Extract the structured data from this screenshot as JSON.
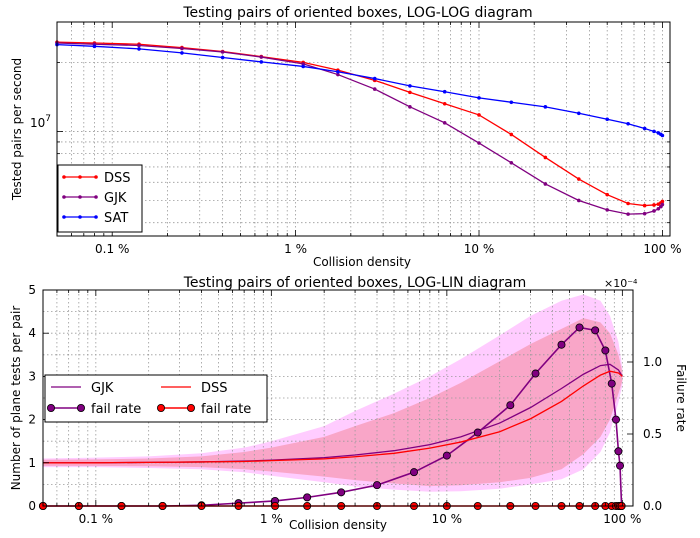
{
  "chart_data": [
    {
      "type": "line",
      "title": "Testing pairs of oriented boxes, LOG-LOG diagram",
      "xlabel": "Collision density",
      "ylabel": "Tested pairs per second",
      "xscale": "log",
      "yscale": "log",
      "xlim": [
        0.05,
        110
      ],
      "ylim": [
        3500000,
        30000000
      ],
      "grid": true,
      "legend_position": "lower-left",
      "x_ticks": [
        {
          "value": 0.1,
          "label": "0.1 %"
        },
        {
          "value": 1,
          "label": "1 %"
        },
        {
          "value": 10,
          "label": "10 %"
        },
        {
          "value": 100,
          "label": "100 %"
        }
      ],
      "y_ticks": [
        {
          "value": 10000000,
          "label": "10",
          "exponent": "7"
        }
      ],
      "x": [
        0.05,
        0.08,
        0.14,
        0.24,
        0.4,
        0.65,
        1.1,
        1.7,
        2.7,
        4.2,
        6.5,
        10,
        15,
        23,
        35,
        50,
        65,
        80,
        90,
        95,
        98,
        100
      ],
      "series": [
        {
          "name": "DSS",
          "color": "#ff0000",
          "values": [
            24500000,
            24300000,
            24000000,
            23200000,
            22300000,
            21200000,
            20000000,
            18500000,
            16700000,
            14800000,
            13200000,
            11800000,
            9700000,
            7700000,
            6200000,
            5300000,
            4850000,
            4750000,
            4780000,
            4820000,
            4880000,
            4950000
          ]
        },
        {
          "name": "GJK",
          "color": "#800080",
          "values": [
            24300000,
            24000000,
            23700000,
            23000000,
            22200000,
            21100000,
            19700000,
            17700000,
            15300000,
            12800000,
            10900000,
            8900000,
            7300000,
            5900000,
            5000000,
            4550000,
            4360000,
            4380000,
            4500000,
            4600000,
            4700000,
            4800000
          ]
        },
        {
          "name": "SAT",
          "color": "#0000ff",
          "values": [
            23900000,
            23500000,
            22900000,
            22000000,
            21000000,
            20100000,
            19200000,
            18200000,
            17000000,
            15800000,
            14900000,
            14000000,
            13400000,
            12800000,
            12000000,
            11300000,
            10800000,
            10300000,
            10000000,
            9850000,
            9720000,
            9600000
          ]
        }
      ]
    },
    {
      "type": "line",
      "title": "Testing pairs of oriented boxes, LOG-LIN diagram",
      "xlabel": "Collision density",
      "ylabel": "Number of plane tests per pair",
      "y2label": "Failure rate",
      "y2_multiplier": "×10⁻⁴",
      "xscale": "log",
      "xlim": [
        0.05,
        115
      ],
      "ylim": [
        0,
        5
      ],
      "y2lim": [
        0,
        1.5
      ],
      "grid": true,
      "legend_position": "middle-left",
      "x_ticks": [
        {
          "value": 0.1,
          "label": "0.1 %"
        },
        {
          "value": 1,
          "label": "1 %"
        },
        {
          "value": 10,
          "label": "10 %"
        },
        {
          "value": 100,
          "label": "100 %"
        }
      ],
      "y_ticks": [
        0,
        1,
        2,
        3,
        4,
        5
      ],
      "y2_ticks": [
        {
          "value": 0,
          "label": "0.0"
        },
        {
          "value": 0.5,
          "label": "0.5"
        },
        {
          "value": 1.0,
          "label": "1.0"
        }
      ],
      "series": [
        {
          "name": "GJK",
          "color": "#800080",
          "kind": "mean",
          "x": [
            0.05,
            0.1,
            0.2,
            0.4,
            0.7,
            1,
            2,
            3,
            5,
            8,
            12,
            20,
            30,
            45,
            60,
            75,
            85,
            95,
            100
          ],
          "values": [
            1.0,
            1.0,
            1.01,
            1.02,
            1.04,
            1.06,
            1.12,
            1.18,
            1.28,
            1.42,
            1.6,
            1.92,
            2.28,
            2.72,
            3.05,
            3.25,
            3.28,
            3.15,
            3.0
          ],
          "band_inner": {
            "color": "#f9a6c8",
            "lower": [
              0.93,
              0.93,
              0.92,
              0.9,
              0.85,
              0.8,
              0.68,
              0.6,
              0.52,
              0.46,
              0.48,
              0.55,
              0.65,
              0.85,
              1.2,
              1.6,
              2.0,
              2.6,
              2.9
            ],
            "upper": [
              1.07,
              1.08,
              1.1,
              1.15,
              1.25,
              1.35,
              1.6,
              1.85,
              2.15,
              2.5,
              2.85,
              3.35,
              3.75,
              4.1,
              4.35,
              4.25,
              4.0,
              3.5,
              3.1
            ]
          },
          "band_outer": {
            "color": "#ffccff",
            "lower": [
              0.9,
              0.9,
              0.88,
              0.85,
              0.78,
              0.7,
              0.55,
              0.45,
              0.38,
              0.33,
              0.34,
              0.4,
              0.5,
              0.62,
              0.85,
              1.25,
              1.7,
              2.4,
              2.8
            ],
            "upper": [
              1.1,
              1.12,
              1.15,
              1.22,
              1.35,
              1.5,
              1.85,
              2.2,
              2.6,
              3.0,
              3.4,
              3.95,
              4.4,
              4.75,
              4.9,
              4.75,
              4.4,
              3.8,
              3.2
            ]
          }
        },
        {
          "name": "fail rate",
          "color": "#800080",
          "axis": "right",
          "marker": "circle",
          "x": [
            0.05,
            0.08,
            0.14,
            0.24,
            0.4,
            0.65,
            1.05,
            1.6,
            2.5,
            4,
            6.5,
            10,
            15,
            23,
            32,
            45,
            57,
            70,
            80,
            87,
            92,
            95,
            97,
            99
          ],
          "values": [
            0.0,
            0.0,
            0.0,
            0.0,
            0.005,
            0.02,
            0.035,
            0.06,
            0.095,
            0.145,
            0.235,
            0.35,
            0.51,
            0.7,
            0.92,
            1.12,
            1.24,
            1.22,
            1.08,
            0.85,
            0.6,
            0.38,
            0.28,
            0.0
          ]
        },
        {
          "name": "DSS",
          "color": "#ff0000",
          "kind": "mean",
          "x": [
            0.05,
            0.1,
            0.2,
            0.4,
            0.7,
            1,
            2,
            3,
            5,
            8,
            12,
            20,
            30,
            45,
            60,
            75,
            85,
            95,
            100
          ],
          "values": [
            1.0,
            1.0,
            1.01,
            1.02,
            1.03,
            1.05,
            1.09,
            1.14,
            1.22,
            1.34,
            1.48,
            1.72,
            2.02,
            2.42,
            2.78,
            3.03,
            3.12,
            3.08,
            3.0
          ]
        },
        {
          "name": "fail rate",
          "color": "#ff0000",
          "axis": "right",
          "marker": "circle",
          "x": [
            0.05,
            0.08,
            0.14,
            0.24,
            0.4,
            0.65,
            1.05,
            1.6,
            2.5,
            4,
            6.5,
            10,
            15,
            23,
            32,
            45,
            57,
            70,
            80,
            87,
            92,
            95,
            97,
            99
          ],
          "values": [
            0,
            0,
            0,
            0,
            0,
            0,
            0,
            0,
            0,
            0,
            0,
            0,
            0,
            0,
            0,
            0,
            0,
            0,
            0,
            0,
            0,
            0,
            0,
            0
          ]
        }
      ]
    }
  ]
}
